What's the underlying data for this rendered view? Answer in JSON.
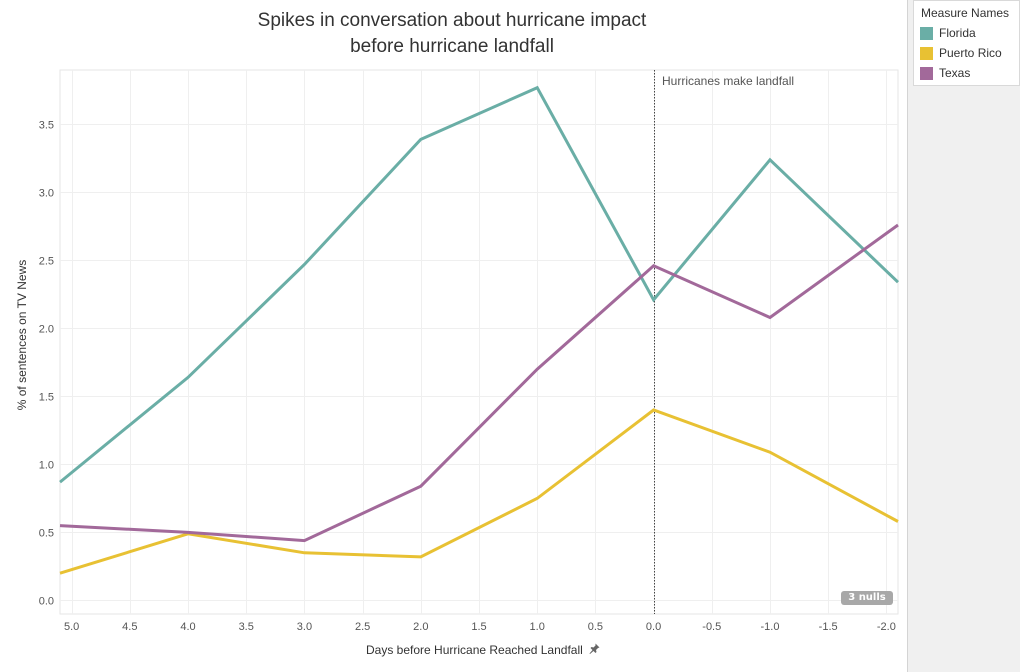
{
  "chart_data": {
    "type": "line",
    "title": [
      "Spikes in conversation about hurricane impact",
      "before hurricane landfall"
    ],
    "xlabel": "Days before Hurricane Reached Landfall",
    "ylabel": "% of sentences on TV News",
    "x_reversed": true,
    "xlim": [
      5.1,
      -2.1
    ],
    "ylim": [
      -0.1,
      3.9
    ],
    "x_ticks": [
      5.0,
      4.5,
      4.0,
      3.5,
      3.0,
      2.5,
      2.0,
      1.5,
      1.0,
      0.5,
      0.0,
      -0.5,
      -1.0,
      -1.5,
      -2.0
    ],
    "x_tick_labels": [
      "5.0",
      "4.5",
      "4.0",
      "3.5",
      "3.0",
      "2.5",
      "2.0",
      "1.5",
      "1.0",
      "0.5",
      "0.0",
      "-0.5",
      "-1.0",
      "-1.5",
      "-2.0"
    ],
    "y_ticks": [
      0.0,
      0.5,
      1.0,
      1.5,
      2.0,
      2.5,
      3.0,
      3.5
    ],
    "y_tick_labels": [
      "0.0",
      "0.5",
      "1.0",
      "1.5",
      "2.0",
      "2.5",
      "3.0",
      "3.5"
    ],
    "x": [
      5.1,
      4.0,
      3.0,
      2.0,
      1.0,
      0.0,
      -1.0,
      -2.1
    ],
    "series": [
      {
        "name": "Florida",
        "color": "#6aaea6",
        "values": [
          0.87,
          1.64,
          2.47,
          3.39,
          3.77,
          2.21,
          3.24,
          2.34
        ]
      },
      {
        "name": "Puerto Rico",
        "color": "#e8c133",
        "values": [
          0.2,
          0.49,
          0.35,
          0.32,
          0.75,
          1.4,
          1.09,
          0.58
        ]
      },
      {
        "name": "Texas",
        "color": "#a2699a",
        "values": [
          0.55,
          0.5,
          0.44,
          0.84,
          1.7,
          2.46,
          2.08,
          2.76
        ]
      }
    ],
    "reference_line": {
      "x": 0.0,
      "label": "Hurricanes make landfall"
    },
    "grid": true,
    "legend_position": "top-right"
  },
  "legend": {
    "title": "Measure Names",
    "items": [
      {
        "label": "Florida",
        "color": "#6aaea6"
      },
      {
        "label": "Puerto Rico",
        "color": "#e8c133"
      },
      {
        "label": "Texas",
        "color": "#a2699a"
      }
    ]
  },
  "nulls_badge": "3 nulls",
  "pin_icon": "pin-icon"
}
